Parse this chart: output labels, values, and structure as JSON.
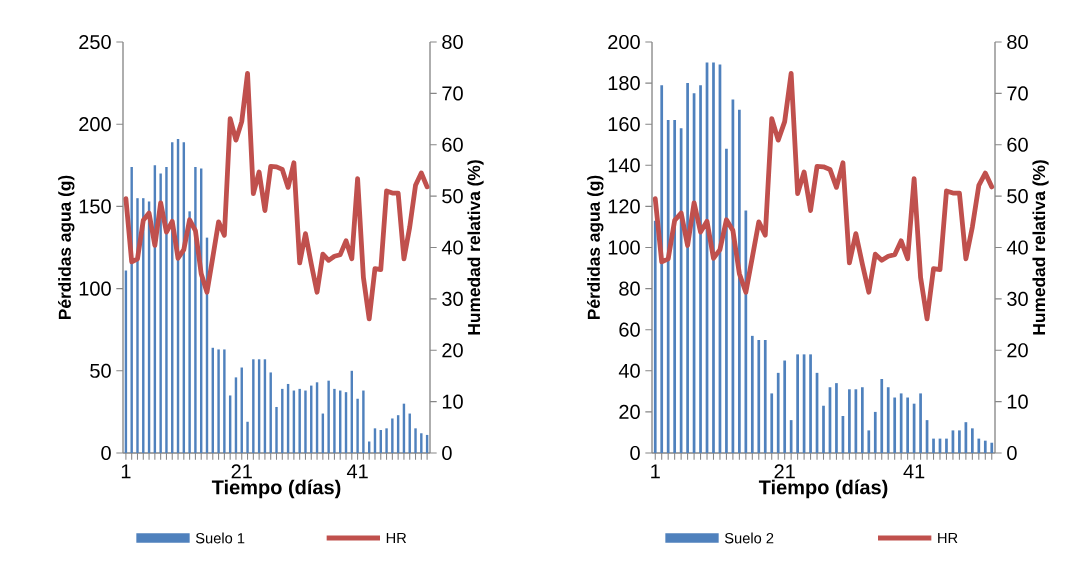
{
  "chart_data": [
    {
      "type": "bar",
      "xlabel": "Tiempo (días)",
      "ylabel": "Pérdidas agua (g)",
      "y2label": "Humedad relativa (%)",
      "legend": "bottom",
      "categories": [
        "1",
        null,
        null,
        null,
        null,
        null,
        null,
        null,
        null,
        null,
        null,
        null,
        null,
        null,
        null,
        null,
        null,
        null,
        null,
        null,
        "21",
        null,
        null,
        null,
        null,
        null,
        null,
        null,
        null,
        null,
        null,
        null,
        null,
        null,
        null,
        null,
        null,
        null,
        null,
        null,
        "41",
        null,
        null,
        null,
        null,
        null,
        null,
        null,
        null,
        null,
        null,
        null,
        null
      ],
      "ylim": [
        0,
        250
      ],
      "yticks": [
        0,
        50,
        100,
        150,
        200,
        250
      ],
      "y2lim": [
        0,
        80
      ],
      "y2ticks": [
        0,
        10,
        20,
        30,
        40,
        50,
        60,
        70,
        80
      ],
      "series": [
        {
          "name": "Suelo 1",
          "color": "#4f81bd",
          "values": [
            111,
            174,
            155,
            155,
            153,
            175,
            170,
            174,
            189,
            191,
            189,
            147,
            174,
            173,
            131,
            64,
            63,
            63,
            35,
            46,
            52,
            19,
            57,
            57,
            57,
            49,
            28,
            39,
            42,
            38,
            39,
            38,
            41,
            43,
            24,
            44,
            39,
            38,
            37,
            50,
            33,
            38,
            7,
            15,
            14,
            15,
            21,
            23,
            30,
            24,
            15,
            12,
            11
          ]
        },
        {
          "name": "HR",
          "type": "line",
          "axis": "y2",
          "color": "#c0504d",
          "values": [
            49.5,
            37.2,
            37.8,
            45.3,
            46.7,
            40.4,
            48.7,
            43,
            45.1,
            37.9,
            39.6,
            45.4,
            43.3,
            34.9,
            31.3,
            38.1,
            45,
            42.4,
            65.1,
            60.9,
            64.5,
            73.9,
            50.5,
            54.7,
            47.2,
            55.8,
            55.7,
            55.2,
            51.7,
            56.5,
            37,
            42.7,
            36.8,
            31.3,
            38.7,
            37.5,
            38.3,
            38.6,
            41.3,
            37.8,
            53.4,
            34.2,
            26.1,
            35.9,
            35.7,
            51,
            50.6,
            50.6,
            37.8,
            44,
            52.1,
            54.5,
            51.8
          ]
        }
      ]
    },
    {
      "type": "bar",
      "xlabel": "Tiempo (días)",
      "ylabel": "Pérdidas agua (g)",
      "y2label": "Humedad relativa (%)",
      "legend": "bottom",
      "categories": [
        "1",
        null,
        null,
        null,
        null,
        null,
        null,
        null,
        null,
        null,
        null,
        null,
        null,
        null,
        null,
        null,
        null,
        null,
        null,
        null,
        "21",
        null,
        null,
        null,
        null,
        null,
        null,
        null,
        null,
        null,
        null,
        null,
        null,
        null,
        null,
        null,
        null,
        null,
        null,
        null,
        "41",
        null,
        null,
        null,
        null,
        null,
        null,
        null,
        null,
        null,
        null,
        null,
        null
      ],
      "ylim": [
        0,
        200
      ],
      "yticks": [
        0,
        20,
        40,
        60,
        80,
        100,
        120,
        140,
        160,
        180,
        200
      ],
      "y2lim": [
        0,
        80
      ],
      "y2ticks": [
        0,
        10,
        20,
        30,
        40,
        50,
        60,
        70,
        80
      ],
      "series": [
        {
          "name": "Suelo 2",
          "color": "#4f81bd",
          "values": [
            113,
            179,
            162,
            162,
            158,
            180,
            175,
            179,
            190,
            190,
            189,
            148,
            172,
            167,
            118,
            57,
            55,
            55,
            29,
            39,
            45,
            16,
            48,
            48,
            48,
            39,
            23,
            32,
            34,
            18,
            31,
            31,
            32,
            11,
            20,
            36,
            32,
            27,
            29,
            27,
            24,
            29,
            16,
            7,
            7,
            7,
            11,
            11,
            15,
            12,
            7,
            6,
            5
          ]
        },
        {
          "name": "HR",
          "type": "line",
          "axis": "y2",
          "color": "#c0504d",
          "values": [
            49.5,
            37.2,
            37.8,
            45.3,
            46.7,
            40.4,
            48.7,
            43,
            45.1,
            37.9,
            39.6,
            45.4,
            43.3,
            34.9,
            31.3,
            38.1,
            45,
            42.4,
            65.1,
            60.9,
            64.5,
            73.9,
            50.5,
            54.7,
            47.2,
            55.8,
            55.7,
            55.2,
            51.7,
            56.5,
            37,
            42.7,
            36.8,
            31.3,
            38.7,
            37.5,
            38.3,
            38.6,
            41.3,
            37.8,
            53.4,
            34.2,
            26.1,
            35.9,
            35.7,
            51,
            50.6,
            50.6,
            37.8,
            44,
            52.1,
            54.5,
            51.8
          ]
        }
      ]
    }
  ]
}
